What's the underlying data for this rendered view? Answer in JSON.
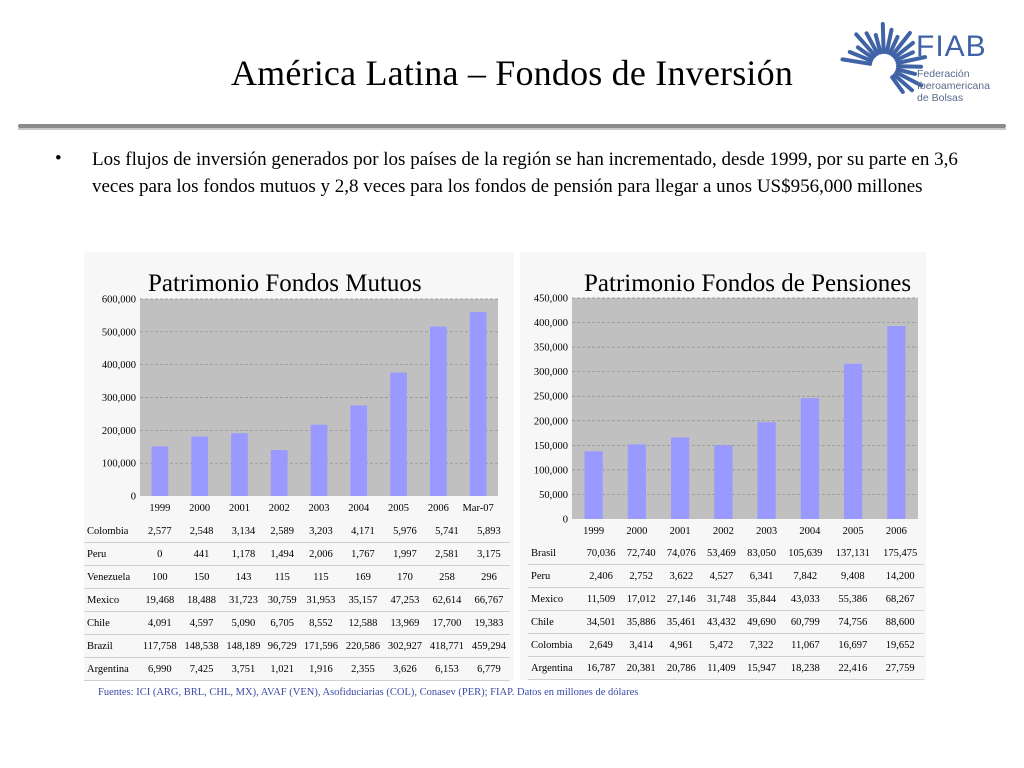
{
  "slide": {
    "title": "América Latina – Fondos de Inversión",
    "bullet": "•",
    "bullet_text": "Los flujos de inversión generados por los países de la región se han incrementado, desde 1999, por su parte en 3,6 veces para los fondos mutuos y 2,8 veces para los fondos de pensión para llegar a unos US$956,000 millones",
    "source": "Fuentes: ICI (ARG, BRL, CHL, MX), AVAF (VEN), Asofiduciarias (COL), Conasev (PER); FIAP. Datos en millones de dólares"
  },
  "logo": {
    "name": "FIAB",
    "subtitle": "Federación\nIberoamericana\nde Bolsas",
    "color": "#3f63a6"
  },
  "colors": {
    "bar": "#9999ff",
    "plot_bg": "#c0c0c0",
    "panel_bg": "#f7f7f7",
    "source_text": "#3a4aa8"
  },
  "chart_data": [
    {
      "type": "bar",
      "title": "Patrimonio Fondos Mutuos",
      "categories": [
        "1999",
        "2000",
        "2001",
        "2002",
        "2003",
        "2004",
        "2005",
        "2006",
        "Mar-07"
      ],
      "values": [
        151000,
        181000,
        191000,
        140000,
        217000,
        276000,
        376000,
        516000,
        560000
      ],
      "ylim": [
        0,
        600000
      ],
      "yticks": [
        "0",
        "100,000",
        "200,000",
        "300,000",
        "400,000",
        "500,000",
        "600,000"
      ],
      "grid": true,
      "table": [
        {
          "label": "Colombia",
          "values": [
            "2,577",
            "2,548",
            "3,134",
            "2,589",
            "3,203",
            "4,171",
            "5,976",
            "5,741",
            "5,893"
          ]
        },
        {
          "label": "Peru",
          "values": [
            "0",
            "441",
            "1,178",
            "1,494",
            "2,006",
            "1,767",
            "1,997",
            "2,581",
            "3,175"
          ]
        },
        {
          "label": "Venezuela",
          "values": [
            "100",
            "150",
            "143",
            "115",
            "115",
            "169",
            "170",
            "258",
            "296"
          ]
        },
        {
          "label": "Mexico",
          "values": [
            "19,468",
            "18,488",
            "31,723",
            "30,759",
            "31,953",
            "35,157",
            "47,253",
            "62,614",
            "66,767"
          ]
        },
        {
          "label": "Chile",
          "values": [
            "4,091",
            "4,597",
            "5,090",
            "6,705",
            "8,552",
            "12,588",
            "13,969",
            "17,700",
            "19,383"
          ]
        },
        {
          "label": "Brazil",
          "values": [
            "117,758",
            "148,538",
            "148,189",
            "96,729",
            "171,596",
            "220,586",
            "302,927",
            "418,771",
            "459,294"
          ]
        },
        {
          "label": "Argentina",
          "values": [
            "6,990",
            "7,425",
            "3,751",
            "1,021",
            "1,916",
            "2,355",
            "3,626",
            "6,153",
            "6,779"
          ]
        }
      ]
    },
    {
      "type": "bar",
      "title": "Patrimonio Fondos de Pensiones",
      "categories": [
        "1999",
        "2000",
        "2001",
        "2002",
        "2003",
        "2004",
        "2005",
        "2006"
      ],
      "values": [
        138000,
        152000,
        166000,
        150000,
        197000,
        246000,
        316000,
        393000
      ],
      "ylim": [
        0,
        450000
      ],
      "yticks": [
        "0",
        "50,000",
        "100,000",
        "150,000",
        "200,000",
        "250,000",
        "300,000",
        "350,000",
        "400,000",
        "450,000"
      ],
      "grid": true,
      "table": [
        {
          "label": "Brasil",
          "values": [
            "70,036",
            "72,740",
            "74,076",
            "53,469",
            "83,050",
            "105,639",
            "137,131",
            "175,475"
          ]
        },
        {
          "label": "Peru",
          "values": [
            "2,406",
            "2,752",
            "3,622",
            "4,527",
            "6,341",
            "7,842",
            "9,408",
            "14,200"
          ]
        },
        {
          "label": "Mexico",
          "values": [
            "11,509",
            "17,012",
            "27,146",
            "31,748",
            "35,844",
            "43,033",
            "55,386",
            "68,267"
          ]
        },
        {
          "label": "Chile",
          "values": [
            "34,501",
            "35,886",
            "35,461",
            "43,432",
            "49,690",
            "60,799",
            "74,756",
            "88,600"
          ]
        },
        {
          "label": "Colombia",
          "values": [
            "2,649",
            "3,414",
            "4,961",
            "5,472",
            "7,322",
            "11,067",
            "16,697",
            "19,652"
          ]
        },
        {
          "label": "Argentina",
          "values": [
            "16,787",
            "20,381",
            "20,786",
            "11,409",
            "15,947",
            "18,238",
            "22,416",
            "27,759"
          ]
        }
      ]
    }
  ]
}
